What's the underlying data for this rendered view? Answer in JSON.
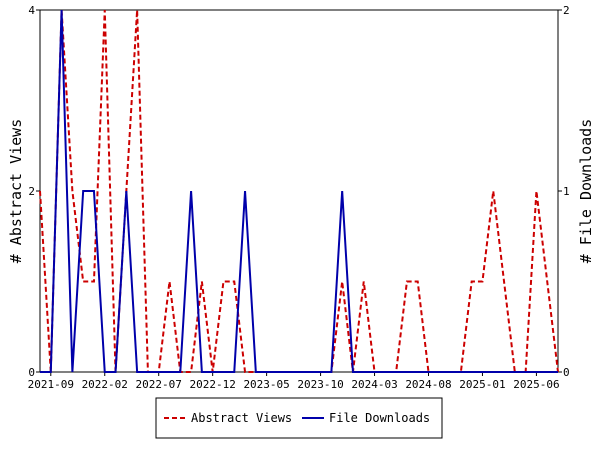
{
  "chart_data": {
    "type": "line",
    "title": "",
    "xlabel": "",
    "y_left_label": "# Abstract Views",
    "y_right_label": "# File Downloads",
    "y_left_lim": [
      0,
      4
    ],
    "y_right_lim": [
      0,
      2
    ],
    "y_left_ticks": [
      "0",
      "2",
      "4"
    ],
    "y_right_ticks": [
      "0",
      "1",
      "2"
    ],
    "x_tick_labels": [
      "2021-09",
      "2022-02",
      "2022-07",
      "2022-12",
      "2023-05",
      "2023-10",
      "2024-03",
      "2024-08",
      "2025-01",
      "2025-06"
    ],
    "grid": false,
    "legend_position": "bottom",
    "x": [
      "2021-08",
      "2021-09",
      "2021-10",
      "2021-11",
      "2021-12",
      "2022-01",
      "2022-02",
      "2022-03",
      "2022-04",
      "2022-05",
      "2022-06",
      "2022-07",
      "2022-08",
      "2022-09",
      "2022-10",
      "2022-11",
      "2022-12",
      "2023-01",
      "2023-02",
      "2023-03",
      "2023-04",
      "2023-05",
      "2023-06",
      "2023-07",
      "2023-08",
      "2023-09",
      "2023-10",
      "2023-11",
      "2023-12",
      "2024-01",
      "2024-02",
      "2024-03",
      "2024-04",
      "2024-05",
      "2024-06",
      "2024-07",
      "2024-08",
      "2024-09",
      "2024-10",
      "2024-11",
      "2024-12",
      "2025-01",
      "2025-02",
      "2025-03",
      "2025-04",
      "2025-05",
      "2025-06",
      "2025-07",
      "2025-08"
    ],
    "series": [
      {
        "name": "Abstract Views",
        "axis": "left",
        "color": "#cc0000",
        "dash": true,
        "values": [
          2,
          0,
          4,
          2,
          1,
          1,
          4,
          0,
          2,
          4,
          0,
          0,
          1,
          0,
          0,
          1,
          0,
          1,
          1,
          0,
          0,
          0,
          0,
          0,
          0,
          0,
          0,
          0,
          1,
          0,
          1,
          0,
          0,
          0,
          1,
          1,
          0,
          0,
          0,
          0,
          1,
          1,
          2,
          1,
          0,
          0,
          2,
          1,
          0
        ]
      },
      {
        "name": "File Downloads",
        "axis": "right",
        "color": "#0000aa",
        "dash": false,
        "values": [
          0,
          0,
          2,
          0,
          1,
          1,
          0,
          0,
          1,
          0,
          0,
          0,
          0,
          0,
          1,
          0,
          0,
          0,
          0,
          1,
          0,
          0,
          0,
          0,
          0,
          0,
          0,
          0,
          1,
          0,
          0,
          0,
          0,
          0,
          0,
          0,
          0,
          0,
          0,
          0,
          0,
          0,
          0,
          0,
          0,
          0,
          0,
          0,
          0
        ]
      }
    ]
  }
}
